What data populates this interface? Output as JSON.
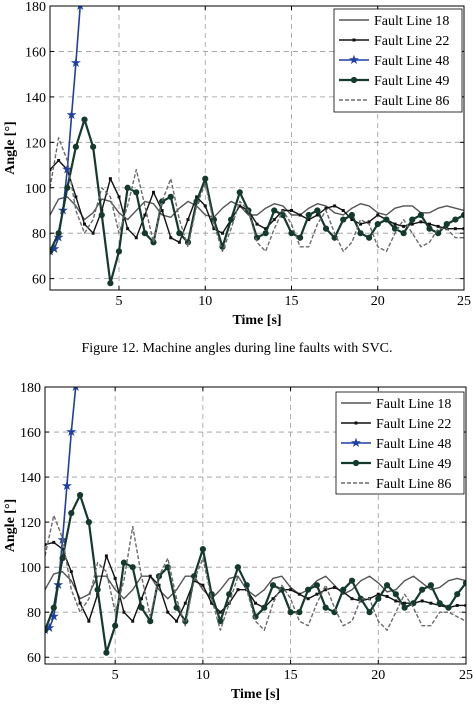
{
  "caption": "Figure 12.  Machine angles during line faults with SVC.",
  "chart_data": [
    {
      "type": "line",
      "xlabel": "Time [s]",
      "ylabel": "Angle [°]",
      "xlim": [
        1,
        25
      ],
      "ylim": [
        55,
        180
      ],
      "xticks": [
        5,
        10,
        15,
        20,
        25
      ],
      "yticks": [
        60,
        80,
        100,
        120,
        140,
        160,
        180
      ],
      "grid": true,
      "legend_position": "top-right",
      "series": [
        {
          "name": "Fault Line 18",
          "color": "#555555",
          "style": "solid",
          "marker": "none",
          "x": [
            1,
            1.5,
            2,
            2.5,
            3,
            3.5,
            4,
            4.5,
            5,
            5.5,
            6,
            6.5,
            7,
            7.5,
            8,
            8.5,
            9,
            9.5,
            10,
            10.5,
            11,
            11.5,
            12,
            12.5,
            13,
            13.5,
            14,
            14.5,
            15,
            15.5,
            16,
            16.5,
            17,
            17.5,
            18,
            18.5,
            19,
            19.5,
            20,
            20.5,
            21,
            21.5,
            22,
            22.5,
            23,
            23.5,
            24,
            24.5,
            25
          ],
          "y": [
            88,
            95,
            96,
            92,
            86,
            89,
            95,
            94,
            89,
            86,
            90,
            94,
            93,
            88,
            87,
            91,
            94,
            92,
            88,
            87,
            91,
            94,
            92,
            88,
            88,
            91,
            93,
            92,
            88,
            88,
            91,
            93,
            92,
            89,
            88,
            91,
            93,
            92,
            89,
            88,
            91,
            92,
            92,
            89,
            89,
            91,
            92,
            91,
            90
          ]
        },
        {
          "name": "Fault Line 22",
          "color": "#111111",
          "style": "solid",
          "marker": "small-square",
          "x": [
            1,
            1.5,
            2,
            2.5,
            3,
            3.5,
            4,
            4.5,
            5,
            5.5,
            6,
            6.5,
            7,
            7.5,
            8,
            8.5,
            9,
            9.5,
            10,
            10.5,
            11,
            11.5,
            12,
            12.5,
            13,
            13.5,
            14,
            14.5,
            15,
            15.5,
            16,
            16.5,
            17,
            17.5,
            18,
            18.5,
            19,
            19.5,
            20,
            20.5,
            21,
            21.5,
            22,
            22.5,
            23,
            23.5,
            24,
            24.5,
            25
          ],
          "y": [
            108,
            112,
            108,
            96,
            84,
            80,
            90,
            104,
            96,
            82,
            78,
            88,
            98,
            90,
            78,
            76,
            86,
            96,
            92,
            82,
            80,
            86,
            92,
            90,
            84,
            82,
            86,
            90,
            90,
            88,
            86,
            88,
            91,
            92,
            90,
            86,
            84,
            85,
            88,
            86,
            84,
            83,
            84,
            85,
            84,
            83,
            82,
            82,
            82
          ]
        },
        {
          "name": "Fault Line 48",
          "color": "#1f3fa8",
          "style": "solid",
          "marker": "star",
          "x": [
            1,
            1.25,
            1.5,
            1.75,
            2,
            2.25,
            2.5,
            2.75
          ],
          "y": [
            72,
            73,
            78,
            90,
            108,
            132,
            155,
            180
          ]
        },
        {
          "name": "Fault Line 49",
          "color": "#143a2c",
          "style": "solid",
          "marker": "dot",
          "x": [
            1,
            1.5,
            2,
            2.5,
            3,
            3.5,
            4,
            4.5,
            5,
            5.5,
            6,
            6.5,
            7,
            7.5,
            8,
            8.5,
            9,
            9.5,
            10,
            10.5,
            11,
            11.5,
            12,
            12.5,
            13,
            13.5,
            14,
            14.5,
            15,
            15.5,
            16,
            16.5,
            17,
            17.5,
            18,
            18.5,
            19,
            19.5,
            20,
            20.5,
            21,
            21.5,
            22,
            22.5,
            23,
            23.5,
            24,
            24.5,
            25
          ],
          "y": [
            72,
            80,
            100,
            118,
            130,
            118,
            88,
            58,
            72,
            100,
            98,
            80,
            76,
            94,
            96,
            80,
            76,
            94,
            104,
            86,
            74,
            86,
            98,
            90,
            78,
            80,
            90,
            88,
            80,
            78,
            88,
            90,
            82,
            78,
            86,
            88,
            80,
            78,
            84,
            86,
            82,
            80,
            86,
            88,
            82,
            80,
            84,
            86,
            88
          ]
        },
        {
          "name": "Fault Line 86",
          "color": "#6b6b6b",
          "style": "dashed",
          "marker": "none",
          "x": [
            1,
            1.5,
            2,
            2.5,
            3,
            3.5,
            4,
            4.5,
            5,
            5.5,
            6,
            6.5,
            7,
            7.5,
            8,
            8.5,
            9,
            9.5,
            10,
            10.5,
            11,
            11.5,
            12,
            12.5,
            13,
            13.5,
            14,
            14.5,
            15,
            15.5,
            16,
            16.5,
            17,
            17.5,
            18,
            18.5,
            19,
            19.5,
            20,
            20.5,
            21,
            21.5,
            22,
            22.5,
            23,
            23.5,
            24,
            24.5,
            25
          ],
          "y": [
            100,
            122,
            112,
            90,
            80,
            86,
            100,
            96,
            80,
            92,
            108,
            92,
            76,
            94,
            104,
            86,
            74,
            92,
            102,
            84,
            72,
            82,
            94,
            90,
            76,
            72,
            82,
            90,
            84,
            74,
            74,
            84,
            90,
            80,
            72,
            76,
            86,
            84,
            74,
            72,
            80,
            86,
            80,
            74,
            76,
            82,
            82,
            78,
            78
          ]
        }
      ]
    },
    {
      "type": "line",
      "xlabel": "Time [s]",
      "ylabel": "Angle [°]",
      "xlim": [
        1,
        25
      ],
      "ylim": [
        57,
        180
      ],
      "xticks": [
        5,
        10,
        15,
        20,
        25
      ],
      "yticks": [
        60,
        80,
        100,
        120,
        140,
        160,
        180
      ],
      "grid": true,
      "legend_position": "top-right",
      "series": [
        {
          "name": "Fault Line 18",
          "color": "#555555",
          "style": "solid",
          "marker": "none",
          "x": [
            1,
            1.5,
            2,
            2.5,
            3,
            3.5,
            4,
            4.5,
            5,
            5.5,
            6,
            6.5,
            7,
            7.5,
            8,
            8.5,
            9,
            9.5,
            10,
            10.5,
            11,
            11.5,
            12,
            12.5,
            13,
            13.5,
            14,
            14.5,
            15,
            15.5,
            16,
            16.5,
            17,
            17.5,
            18,
            18.5,
            19,
            19.5,
            20,
            20.5,
            21,
            21.5,
            22,
            22.5,
            23,
            23.5,
            24,
            24.5,
            25
          ],
          "y": [
            90,
            97,
            98,
            94,
            86,
            88,
            96,
            96,
            90,
            86,
            90,
            96,
            96,
            90,
            86,
            90,
            96,
            96,
            90,
            86,
            90,
            95,
            96,
            90,
            87,
            90,
            95,
            96,
            91,
            88,
            90,
            94,
            96,
            92,
            88,
            90,
            94,
            96,
            93,
            89,
            90,
            94,
            96,
            93,
            90,
            91,
            94,
            95,
            94
          ]
        },
        {
          "name": "Fault Line 22",
          "color": "#111111",
          "style": "solid",
          "marker": "small-square",
          "x": [
            1,
            1.5,
            2,
            2.5,
            3,
            3.5,
            4,
            4.5,
            5,
            5.5,
            6,
            6.5,
            7,
            7.5,
            8,
            8.5,
            9,
            9.5,
            10,
            10.5,
            11,
            11.5,
            12,
            12.5,
            13,
            13.5,
            14,
            14.5,
            15,
            15.5,
            16,
            16.5,
            17,
            17.5,
            18,
            18.5,
            19,
            19.5,
            20,
            20.5,
            21,
            21.5,
            22,
            22.5,
            23,
            23.5,
            24,
            24.5,
            25
          ],
          "y": [
            110,
            111,
            108,
            98,
            84,
            76,
            88,
            105,
            95,
            80,
            76,
            86,
            96,
            92,
            80,
            76,
            84,
            94,
            92,
            84,
            80,
            84,
            90,
            90,
            84,
            82,
            86,
            90,
            90,
            88,
            86,
            88,
            90,
            91,
            89,
            86,
            85,
            86,
            88,
            87,
            85,
            84,
            84,
            85,
            84,
            83,
            82,
            83,
            83
          ]
        },
        {
          "name": "Fault Line 48",
          "color": "#1f3fa8",
          "style": "solid",
          "marker": "star",
          "x": [
            1,
            1.25,
            1.5,
            1.75,
            2,
            2.25,
            2.5,
            2.75
          ],
          "y": [
            72,
            73,
            78,
            92,
            112,
            136,
            160,
            180
          ]
        },
        {
          "name": "Fault Line 49",
          "color": "#143a2c",
          "style": "solid",
          "marker": "dot",
          "x": [
            1,
            1.5,
            2,
            2.5,
            3,
            3.5,
            4,
            4.5,
            5,
            5.5,
            6,
            6.5,
            7,
            7.5,
            8,
            8.5,
            9,
            9.5,
            10,
            10.5,
            11,
            11.5,
            12,
            12.5,
            13,
            13.5,
            14,
            14.5,
            15,
            15.5,
            16,
            16.5,
            17,
            17.5,
            18,
            18.5,
            19,
            19.5,
            20,
            20.5,
            21,
            21.5,
            22,
            22.5,
            23,
            23.5,
            24,
            24.5,
            25
          ],
          "y": [
            72,
            82,
            104,
            124,
            132,
            120,
            90,
            62,
            74,
            102,
            100,
            82,
            76,
            96,
            100,
            82,
            76,
            96,
            108,
            88,
            76,
            88,
            100,
            92,
            78,
            82,
            92,
            90,
            80,
            80,
            90,
            92,
            82,
            80,
            90,
            94,
            86,
            80,
            86,
            92,
            88,
            82,
            84,
            90,
            92,
            84,
            82,
            88,
            93
          ]
        },
        {
          "name": "Fault Line 86",
          "color": "#6b6b6b",
          "style": "dashed",
          "marker": "none",
          "x": [
            1,
            1.5,
            2,
            2.5,
            3,
            3.5,
            4,
            4.5,
            5,
            5.5,
            6,
            6.5,
            7,
            7.5,
            8,
            8.5,
            9,
            9.5,
            10,
            10.5,
            11,
            11.5,
            12,
            12.5,
            13,
            13.5,
            14,
            14.5,
            15,
            15.5,
            16,
            16.5,
            17,
            17.5,
            18,
            18.5,
            19,
            19.5,
            20,
            20.5,
            21,
            21.5,
            22,
            22.5,
            23,
            23.5,
            24,
            24.5,
            25
          ],
          "y": [
            105,
            123,
            113,
            90,
            80,
            86,
            102,
            98,
            80,
            94,
            118,
            96,
            78,
            96,
            104,
            86,
            74,
            94,
            104,
            86,
            72,
            84,
            96,
            90,
            76,
            72,
            84,
            92,
            86,
            76,
            74,
            84,
            92,
            82,
            74,
            76,
            86,
            86,
            76,
            72,
            80,
            88,
            82,
            74,
            74,
            80,
            80,
            78,
            76
          ]
        }
      ]
    }
  ]
}
